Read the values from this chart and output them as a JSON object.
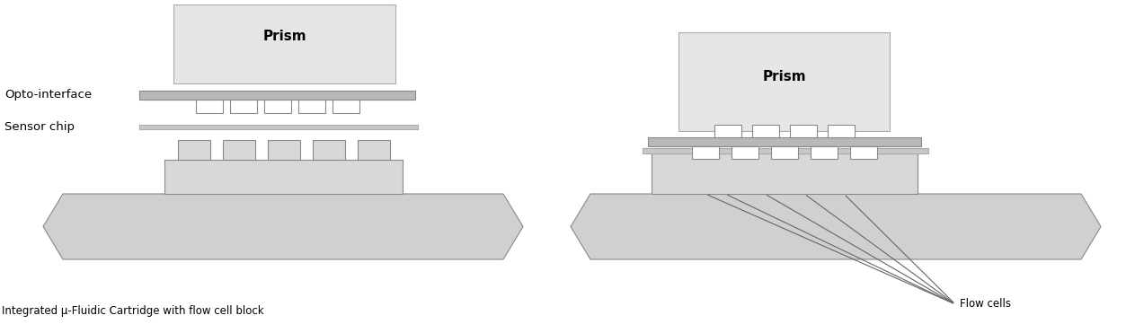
{
  "bg_color": "#ffffff",
  "prism_color": "#e6e6e6",
  "prism_edge_color": "#aaaaaa",
  "opto_color": "#b8b8b8",
  "opto_edge": "#888888",
  "sensor_color": "#c8c8c8",
  "sensor_edge": "#aaaaaa",
  "block_color": "#d8d8d8",
  "block_edge": "#888888",
  "cart_color": "#d0d0d0",
  "cart_edge": "#888888",
  "line_color": "#666666",
  "label_color": "#000000",
  "title_left": "Integrated μ-Fluidic Cartridge with flow cell block",
  "title_right": "Flow cells",
  "prism_label": "Prism",
  "label_opto": "Opto-interface",
  "label_sensor": "Sensor chip"
}
